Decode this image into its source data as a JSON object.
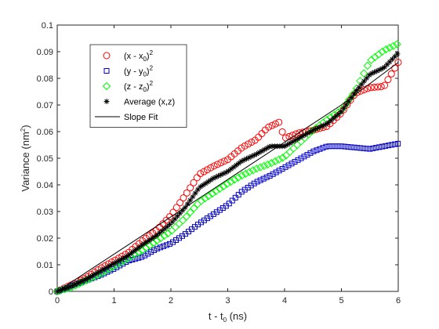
{
  "chart_data": {
    "type": "scatter",
    "xlabel": "t - t",
    "xlabel_sub": "0",
    "xlabel_unit": " (ns)",
    "ylabel": "Variance (nm",
    "ylabel_sup": "2",
    "ylabel_end": ")",
    "xlim": [
      0,
      6
    ],
    "ylim": [
      0,
      0.1
    ],
    "x_ticks": [
      0,
      1,
      2,
      3,
      4,
      5,
      6
    ],
    "y_ticks": [
      0,
      0.01,
      0.02,
      0.03,
      0.04,
      0.05,
      0.06,
      0.07,
      0.08,
      0.09,
      0.1
    ],
    "x_tick_labels": [
      "0",
      "1",
      "2",
      "3",
      "4",
      "5",
      "6"
    ],
    "y_tick_labels": [
      "0",
      "0.01",
      "0.02",
      "0.03",
      "0.04",
      "0.05",
      "0.06",
      "0.07",
      "0.08",
      "0.09",
      "0.1"
    ],
    "grid": false,
    "legend_position": "top-left",
    "legend": [
      {
        "base": "(x - x",
        "sub": "0",
        "end": ")",
        "sup": "2",
        "marker": "circle",
        "color": "#ff0000"
      },
      {
        "base": "(y - y",
        "sub": "0",
        "end": ")",
        "sup": "2",
        "marker": "square",
        "color": "#0000c8"
      },
      {
        "base": "(z - z",
        "sub": "0",
        "end": ")",
        "sup": "2",
        "marker": "diamond",
        "color": "#00ff00"
      },
      {
        "base": "Average (x,z)",
        "sub": "",
        "end": "",
        "sup": "",
        "marker": "asterisk",
        "color": "#000000"
      },
      {
        "base": "Slope Fit",
        "sub": "",
        "end": "",
        "sup": "",
        "marker": "line",
        "color": "#000000"
      }
    ],
    "series": [
      {
        "marker": "circle",
        "color": "#ff0000",
        "points": [
          [
            0,
            0
          ],
          [
            0.25,
            0.0025
          ],
          [
            0.5,
            0.005
          ],
          [
            0.75,
            0.0085
          ],
          [
            1,
            0.0115
          ],
          [
            1.25,
            0.0145
          ],
          [
            1.5,
            0.019
          ],
          [
            1.75,
            0.023
          ],
          [
            2,
            0.0285
          ],
          [
            2.25,
            0.036
          ],
          [
            2.5,
            0.044
          ],
          [
            2.75,
            0.047
          ],
          [
            3,
            0.0495
          ],
          [
            3.25,
            0.054
          ],
          [
            3.5,
            0.057
          ],
          [
            3.7,
            0.0615
          ],
          [
            3.9,
            0.0635
          ],
          [
            4,
            0.0575
          ],
          [
            4.25,
            0.0595
          ],
          [
            4.5,
            0.0605
          ],
          [
            4.75,
            0.062
          ],
          [
            5,
            0.067
          ],
          [
            5.25,
            0.0745
          ],
          [
            5.5,
            0.0765
          ],
          [
            5.75,
            0.077
          ],
          [
            6,
            0.086
          ]
        ]
      },
      {
        "marker": "square",
        "color": "#0000c8",
        "points": [
          [
            0,
            0
          ],
          [
            0.25,
            0.002
          ],
          [
            0.5,
            0.004
          ],
          [
            0.75,
            0.006
          ],
          [
            1,
            0.0085
          ],
          [
            1.25,
            0.0115
          ],
          [
            1.5,
            0.013
          ],
          [
            1.75,
            0.016
          ],
          [
            2,
            0.018
          ],
          [
            2.25,
            0.0215
          ],
          [
            2.5,
            0.0255
          ],
          [
            2.75,
            0.029
          ],
          [
            3,
            0.0325
          ],
          [
            3.25,
            0.0375
          ],
          [
            3.5,
            0.041
          ],
          [
            3.75,
            0.0435
          ],
          [
            4,
            0.0465
          ],
          [
            4.25,
            0.0495
          ],
          [
            4.5,
            0.0525
          ],
          [
            4.75,
            0.0545
          ],
          [
            5,
            0.0545
          ],
          [
            5.25,
            0.054
          ],
          [
            5.5,
            0.0535
          ],
          [
            5.75,
            0.0545
          ],
          [
            6,
            0.0555
          ]
        ]
      },
      {
        "marker": "diamond",
        "color": "#00ff00",
        "points": [
          [
            0,
            0
          ],
          [
            0.25,
            0.0015
          ],
          [
            0.5,
            0.004
          ],
          [
            0.75,
            0.0065
          ],
          [
            1,
            0.0095
          ],
          [
            1.25,
            0.0125
          ],
          [
            1.5,
            0.0155
          ],
          [
            1.75,
            0.019
          ],
          [
            2,
            0.0225
          ],
          [
            2.25,
            0.0275
          ],
          [
            2.5,
            0.0335
          ],
          [
            2.75,
            0.037
          ],
          [
            3,
            0.0405
          ],
          [
            3.25,
            0.0435
          ],
          [
            3.5,
            0.046
          ],
          [
            3.75,
            0.048
          ],
          [
            4,
            0.0505
          ],
          [
            4.25,
            0.0555
          ],
          [
            4.5,
            0.0605
          ],
          [
            4.75,
            0.0645
          ],
          [
            5,
            0.068
          ],
          [
            5.25,
            0.0755
          ],
          [
            5.5,
            0.0865
          ],
          [
            5.75,
            0.0905
          ],
          [
            6,
            0.093
          ]
        ]
      },
      {
        "marker": "asterisk",
        "color": "#000000",
        "points": [
          [
            0,
            0
          ],
          [
            0.25,
            0.002
          ],
          [
            0.5,
            0.0045
          ],
          [
            0.75,
            0.0075
          ],
          [
            1,
            0.0105
          ],
          [
            1.25,
            0.0135
          ],
          [
            1.5,
            0.0175
          ],
          [
            1.75,
            0.021
          ],
          [
            2,
            0.0255
          ],
          [
            2.25,
            0.0315
          ],
          [
            2.5,
            0.039
          ],
          [
            2.75,
            0.0425
          ],
          [
            3,
            0.045
          ],
          [
            3.25,
            0.049
          ],
          [
            3.5,
            0.0515
          ],
          [
            3.75,
            0.0545
          ],
          [
            4,
            0.0545
          ],
          [
            4.25,
            0.0575
          ],
          [
            4.5,
            0.0605
          ],
          [
            4.75,
            0.063
          ],
          [
            5,
            0.0675
          ],
          [
            5.25,
            0.075
          ],
          [
            5.5,
            0.0815
          ],
          [
            5.75,
            0.084
          ],
          [
            6,
            0.0895
          ]
        ]
      }
    ],
    "fit_line": {
      "color": "#000000",
      "points": [
        [
          0,
          0
        ],
        [
          1,
          0.014
        ],
        [
          2,
          0.028
        ],
        [
          3,
          0.042
        ],
        [
          4,
          0.056
        ],
        [
          5,
          0.07
        ],
        [
          6,
          0.086
        ]
      ]
    }
  }
}
